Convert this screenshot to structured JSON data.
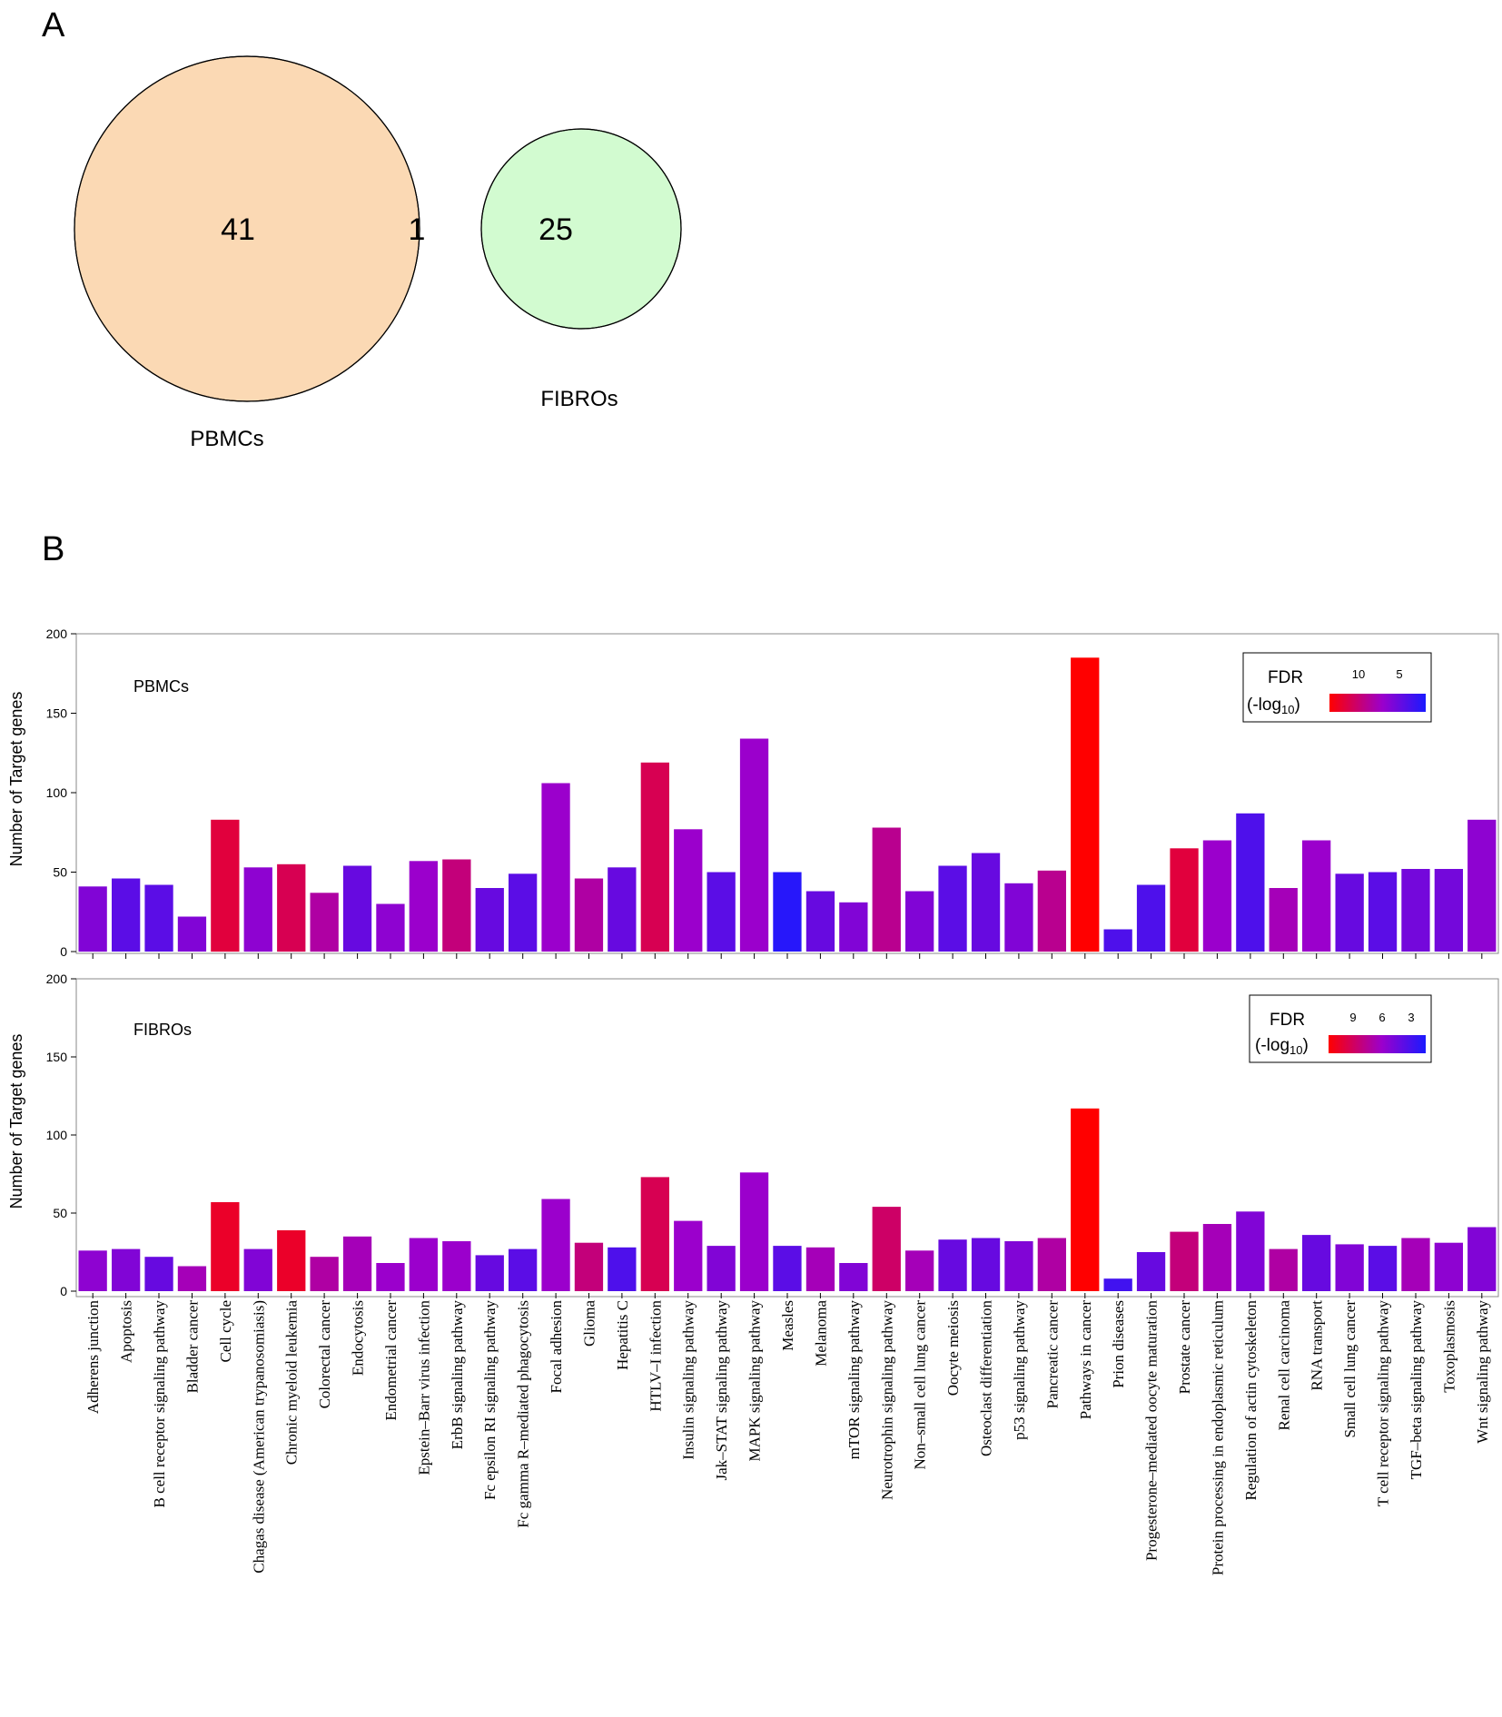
{
  "panel_a": {
    "letter": "A",
    "venn": {
      "left": {
        "label": "PBMCs",
        "count": "41",
        "color": "#fbd9b4"
      },
      "right": {
        "label": "FIBROs",
        "count": "25",
        "color": "#d2fbd0"
      },
      "overlap": {
        "count": "1",
        "color": "#fdf7d2"
      }
    }
  },
  "panel_b": {
    "letter": "B"
  },
  "colors": {
    "high": "#ff0000",
    "mid": "#9b00cc",
    "low": "#1a1aff"
  },
  "chart_data": [
    {
      "type": "bar",
      "name": "PBMCs",
      "ylabel": "Number of Target genes",
      "ylim": [
        0,
        200
      ],
      "yticks": [
        0,
        50,
        100,
        150,
        200
      ],
      "legend": {
        "title": "FDR",
        "subtitle": "(-log",
        "subscript": "10",
        "close": ")",
        "ticks": [
          "10",
          "5"
        ],
        "position": "top-right"
      },
      "categories": [
        "Adherens junction",
        "Apoptosis",
        "B cell receptor signaling pathway",
        "Bladder cancer",
        "Cell cycle",
        "Chagas disease (American trypanosomiasis)",
        "Chronic myeloid leukemia",
        "Colorectal cancer",
        "Endocytosis",
        "Endometrial cancer",
        "Epstein–Barr virus infection",
        "ErbB signaling pathway",
        "Fc epsilon RI signaling pathway",
        "Fc gamma R–mediated phagocytosis",
        "Focal adhesion",
        "Glioma",
        "Hepatitis C",
        "HTLV–I infection",
        "Insulin signaling pathway",
        "Jak–STAT signaling pathway",
        "MAPK signaling pathway",
        "Measles",
        "Melanoma",
        "mTOR signaling pathway",
        "Neurotrophin signaling pathway",
        "Non–small cell lung cancer",
        "Oocyte meiosis",
        "Osteoclast differentiation",
        "p53 signaling pathway",
        "Pancreatic cancer",
        "Pathways in cancer",
        "Prion diseases",
        "Progesterone–mediated oocyte maturation",
        "Prostate cancer",
        "Protein processing in endoplasmic reticulum",
        "Regulation of actin cytoskeleton",
        "Renal cell carcinoma",
        "RNA transport",
        "Small cell lung cancer",
        "T cell receptor signaling pathway",
        "TGF–beta signaling pathway",
        "Toxoplasmosis",
        "Wnt signaling pathway"
      ],
      "values": [
        41,
        46,
        42,
        22,
        83,
        53,
        55,
        37,
        54,
        30,
        57,
        58,
        40,
        49,
        106,
        46,
        53,
        119,
        77,
        50,
        134,
        50,
        38,
        31,
        78,
        38,
        54,
        62,
        43,
        51,
        185,
        14,
        42,
        65,
        70,
        87,
        40,
        70,
        49,
        50,
        52,
        52,
        83
      ],
      "color_level": [
        0.4,
        0.25,
        0.25,
        0.4,
        0.85,
        0.45,
        0.8,
        0.6,
        0.3,
        0.45,
        0.5,
        0.7,
        0.3,
        0.25,
        0.5,
        0.6,
        0.3,
        0.8,
        0.5,
        0.25,
        0.5,
        0.05,
        0.3,
        0.4,
        0.65,
        0.4,
        0.25,
        0.3,
        0.4,
        0.65,
        1.0,
        0.2,
        0.2,
        0.85,
        0.5,
        0.2,
        0.55,
        0.5,
        0.3,
        0.25,
        0.35,
        0.35,
        0.45
      ]
    },
    {
      "type": "bar",
      "name": "FIBROs",
      "ylabel": "Number of Target genes",
      "ylim": [
        0,
        200
      ],
      "yticks": [
        0,
        50,
        100,
        150,
        200
      ],
      "legend": {
        "title": "FDR",
        "subtitle": "(-log",
        "subscript": "10",
        "close": ")",
        "ticks": [
          "9",
          "6",
          "3"
        ],
        "position": "top-right"
      },
      "categories": [
        "Adherens junction",
        "Apoptosis",
        "B cell receptor signaling pathway",
        "Bladder cancer",
        "Cell cycle",
        "Chagas disease (American trypanosomiasis)",
        "Chronic myeloid leukemia",
        "Colorectal cancer",
        "Endocytosis",
        "Endometrial cancer",
        "Epstein–Barr virus infection",
        "ErbB signaling pathway",
        "Fc epsilon RI signaling pathway",
        "Fc gamma R–mediated phagocytosis",
        "Focal adhesion",
        "Glioma",
        "Hepatitis C",
        "HTLV–I infection",
        "Insulin signaling pathway",
        "Jak–STAT signaling pathway",
        "MAPK signaling pathway",
        "Measles",
        "Melanoma",
        "mTOR signaling pathway",
        "Neurotrophin signaling pathway",
        "Non–small cell lung cancer",
        "Oocyte meiosis",
        "Osteoclast differentiation",
        "p53 signaling pathway",
        "Pancreatic cancer",
        "Pathways in cancer",
        "Prion diseases",
        "Progesterone–mediated oocyte maturation",
        "Prostate cancer",
        "Protein processing in endoplasmic reticulum",
        "Regulation of actin cytoskeleton",
        "Renal cell carcinoma",
        "RNA transport",
        "Small cell lung cancer",
        "T cell receptor signaling pathway",
        "TGF–beta signaling pathway",
        "Toxoplasmosis",
        "Wnt signaling pathway"
      ],
      "values": [
        26,
        27,
        22,
        16,
        57,
        27,
        39,
        22,
        35,
        18,
        34,
        32,
        23,
        27,
        59,
        31,
        28,
        73,
        45,
        29,
        76,
        29,
        28,
        18,
        54,
        26,
        33,
        34,
        32,
        34,
        117,
        8,
        25,
        38,
        43,
        51,
        27,
        36,
        30,
        29,
        34,
        31,
        41
      ],
      "color_level": [
        0.45,
        0.4,
        0.3,
        0.55,
        0.9,
        0.4,
        0.9,
        0.6,
        0.55,
        0.5,
        0.5,
        0.5,
        0.3,
        0.25,
        0.5,
        0.7,
        0.2,
        0.8,
        0.5,
        0.4,
        0.5,
        0.25,
        0.55,
        0.4,
        0.75,
        0.55,
        0.3,
        0.3,
        0.4,
        0.6,
        1.0,
        0.15,
        0.3,
        0.7,
        0.55,
        0.4,
        0.6,
        0.3,
        0.4,
        0.25,
        0.55,
        0.45,
        0.4
      ]
    }
  ]
}
